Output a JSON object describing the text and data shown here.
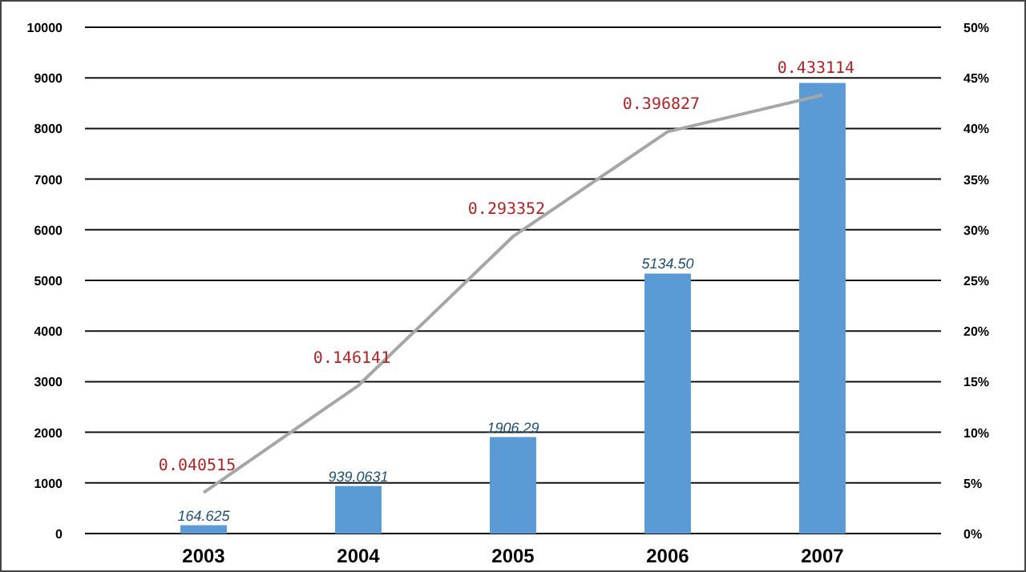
{
  "chart_data": {
    "type": "bar",
    "categories": [
      "2003",
      "2004",
      "2005",
      "2006",
      "2007"
    ],
    "series": [
      {
        "color": "#5b9bd5",
        "values": [
          164.625,
          939.0631,
          1906.29,
          5134.5,
          8900
        ],
        "value_labels": [
          "164.625",
          "939.0631",
          "1906.29",
          "5134.50",
          null
        ]
      },
      {
        "type": "line",
        "axis": "y2",
        "color": "#a6a6a6",
        "values": [
          0.040515,
          0.146141,
          0.293352,
          0.396827,
          0.433114
        ],
        "value_labels": [
          "0.040515",
          "0.146141",
          "0.293352",
          "0.396827",
          "0.433114"
        ]
      }
    ],
    "ylim": [
      0,
      10000
    ],
    "yticks": [
      0,
      1000,
      2000,
      3000,
      4000,
      5000,
      6000,
      7000,
      8000,
      9000,
      10000
    ],
    "y2lim": [
      0,
      0.5
    ],
    "y2ticks": [
      {
        "value": 0,
        "label": "0%"
      },
      {
        "value": 0.05,
        "label": "5%"
      },
      {
        "value": 0.1,
        "label": "10%"
      },
      {
        "value": 0.15,
        "label": "15%"
      },
      {
        "value": 0.2,
        "label": "20%"
      },
      {
        "value": 0.25,
        "label": "25%"
      },
      {
        "value": 0.3,
        "label": "30%"
      },
      {
        "value": 0.35,
        "label": "35%"
      },
      {
        "value": 0.4,
        "label": "40%"
      },
      {
        "value": 0.45,
        "label": "45%"
      },
      {
        "value": 0.5,
        "label": "50%"
      }
    ],
    "grid": "y",
    "marker": "none"
  }
}
